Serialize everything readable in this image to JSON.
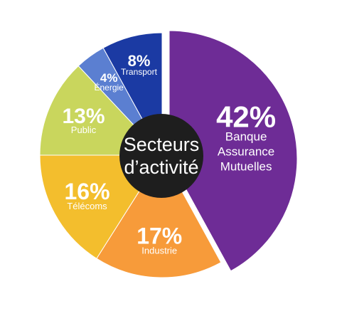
{
  "chart_data": {
    "type": "pie",
    "title": "",
    "center_label": [
      "Secteurs",
      "d’activité"
    ],
    "slices": [
      {
        "label": [
          "Banque",
          "Assurance",
          "Mutuelles"
        ],
        "value": 42,
        "value_text": "42%",
        "color": "#6e2c96"
      },
      {
        "label": [
          "Industrie"
        ],
        "value": 17,
        "value_text": "17%",
        "color": "#f79b3a"
      },
      {
        "label": [
          "Télécoms"
        ],
        "value": 16,
        "value_text": "16%",
        "color": "#f3be2d"
      },
      {
        "label": [
          "Public"
        ],
        "value": 13,
        "value_text": "13%",
        "color": "#c9d65d"
      },
      {
        "label": [
          "Énergie"
        ],
        "value": 4,
        "value_text": "4%",
        "color": "#5b7fd1"
      },
      {
        "label": [
          "Transport"
        ],
        "value": 8,
        "value_text": "8%",
        "color": "#1b3aa3"
      }
    ],
    "center_color": "#1e1e1e"
  }
}
